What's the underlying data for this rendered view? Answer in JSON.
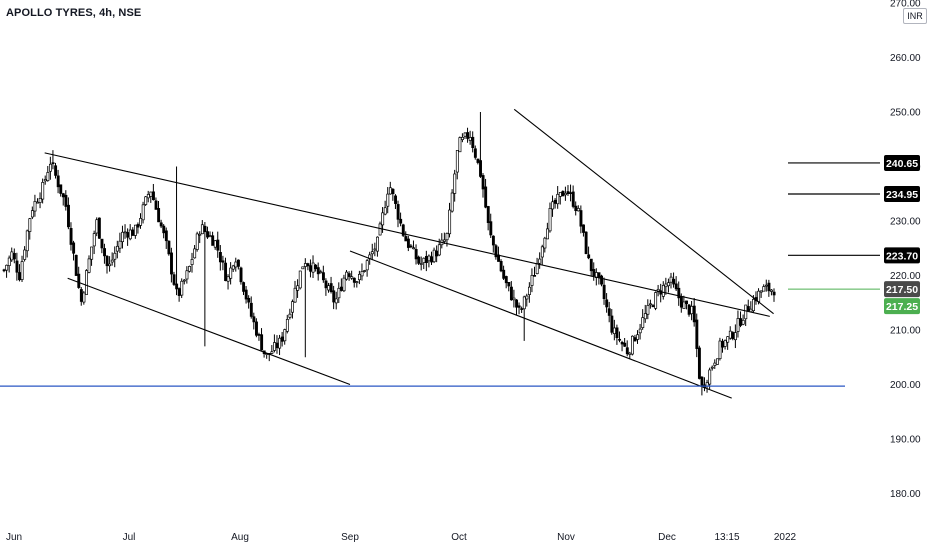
{
  "header": {
    "title": "APOLLO TYRES, 4h, NSE",
    "currency": "INR"
  },
  "colors": {
    "up": "#ffffff",
    "down": "#000000",
    "wick": "#000000",
    "support": "#2a57c4",
    "trendline": "#000000",
    "price_line": "#4caf50"
  },
  "chart_data": {
    "type": "candlestick",
    "title": "APOLLO TYRES, 4h, NSE",
    "currency": "INR",
    "ylim": [
      176,
      272
    ],
    "y_ticks": [
      "270.00",
      "260.00",
      "250.00",
      "240.00",
      "230.00",
      "220.00",
      "210.00",
      "200.00",
      "190.00",
      "180.00"
    ],
    "x_ticks": [
      "Jun",
      "Jul",
      "Aug",
      "Sep",
      "Oct",
      "Nov",
      "Dec",
      "13:15",
      "2022"
    ],
    "anchors": [
      [
        0,
        221
      ],
      [
        0.01,
        224
      ],
      [
        0.02,
        220
      ],
      [
        0.035,
        232
      ],
      [
        0.05,
        236
      ],
      [
        0.06,
        241
      ],
      [
        0.08,
        233
      ],
      [
        0.1,
        215
      ],
      [
        0.12,
        230
      ],
      [
        0.135,
        221
      ],
      [
        0.155,
        228
      ],
      [
        0.17,
        228
      ],
      [
        0.19,
        236
      ],
      [
        0.21,
        226
      ],
      [
        0.225,
        216
      ],
      [
        0.24,
        221
      ],
      [
        0.255,
        229
      ],
      [
        0.275,
        226
      ],
      [
        0.29,
        219
      ],
      [
        0.3,
        224
      ],
      [
        0.32,
        213
      ],
      [
        0.34,
        205
      ],
      [
        0.36,
        208
      ],
      [
        0.375,
        216
      ],
      [
        0.39,
        223
      ],
      [
        0.41,
        220
      ],
      [
        0.43,
        215
      ],
      [
        0.445,
        221
      ],
      [
        0.46,
        219
      ],
      [
        0.47,
        222
      ],
      [
        0.485,
        226
      ],
      [
        0.5,
        237
      ],
      [
        0.52,
        227
      ],
      [
        0.54,
        222
      ],
      [
        0.56,
        224
      ],
      [
        0.575,
        227
      ],
      [
        0.59,
        244
      ],
      [
        0.605,
        246
      ],
      [
        0.62,
        238
      ],
      [
        0.63,
        228
      ],
      [
        0.65,
        219
      ],
      [
        0.67,
        213
      ],
      [
        0.69,
        221
      ],
      [
        0.71,
        232
      ],
      [
        0.73,
        236
      ],
      [
        0.745,
        232
      ],
      [
        0.76,
        222
      ],
      [
        0.775,
        218
      ],
      [
        0.79,
        210
      ],
      [
        0.81,
        206
      ],
      [
        0.83,
        212
      ],
      [
        0.85,
        217
      ],
      [
        0.865,
        219
      ],
      [
        0.88,
        215
      ],
      [
        0.895,
        213
      ],
      [
        0.905,
        199
      ],
      [
        0.915,
        202
      ],
      [
        0.93,
        207
      ],
      [
        0.945,
        209
      ],
      [
        0.965,
        214
      ],
      [
        0.985,
        217.5
      ],
      [
        1.0,
        217.5
      ]
    ],
    "spikes": [
      {
        "at": 0.063,
        "high": 243
      },
      {
        "at": 0.225,
        "high": 240
      },
      {
        "at": 0.618,
        "high": 250
      },
      {
        "at": 0.905,
        "low": 198
      },
      {
        "at": 0.675,
        "low": 208
      },
      {
        "at": 0.39,
        "low": 205
      },
      {
        "at": 0.26,
        "low": 207
      }
    ],
    "trendlines": [
      {
        "kind": "channel-upper",
        "x": [
          "Jun 09",
          "Dec 28"
        ],
        "y": [
          242.5,
          212.5
        ]
      },
      {
        "kind": "channel-lower",
        "x": [
          "Jun 15",
          "Sep 01"
        ],
        "y": [
          219.5,
          200.0
        ]
      },
      {
        "kind": "falling-line",
        "x": [
          "Sep 01",
          "Dec 18"
        ],
        "y": [
          224.5,
          197.5
        ]
      },
      {
        "kind": "falling-line",
        "x": [
          "Oct 17",
          "Dec 29"
        ],
        "y": [
          250.5,
          213.0
        ]
      },
      {
        "kind": "support",
        "y": 199.7
      }
    ],
    "levels": [
      {
        "value": 240.65,
        "label": "240.65",
        "style": "black"
      },
      {
        "value": 234.95,
        "label": "234.95",
        "style": "black"
      },
      {
        "value": 223.7,
        "label": "223.70",
        "style": "black"
      },
      {
        "value": 217.5,
        "label": "217.50",
        "style": "grey"
      },
      {
        "value": 217.25,
        "label": "217.25",
        "style": "green"
      }
    ],
    "last_price": 217.5
  }
}
